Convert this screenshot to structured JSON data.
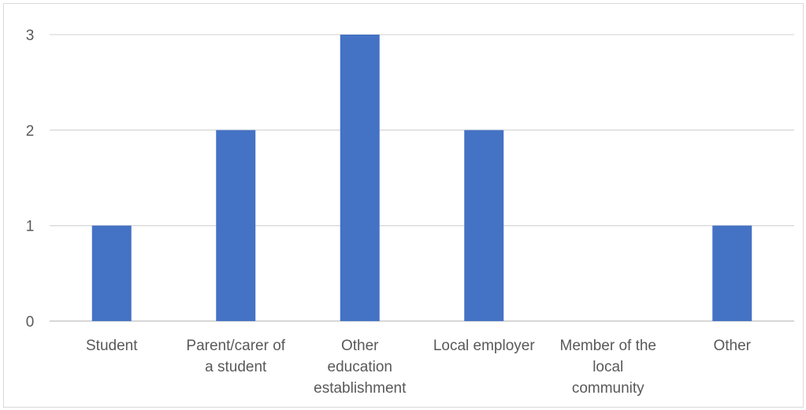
{
  "chart_data": {
    "type": "bar",
    "categories": [
      [
        "Student"
      ],
      [
        "Parent/carer of",
        "a student"
      ],
      [
        "Other",
        "education",
        "establishment"
      ],
      [
        "Local employer"
      ],
      [
        "Member of the",
        "local",
        "community"
      ],
      [
        "Other"
      ]
    ],
    "values": [
      1,
      2,
      3,
      2,
      0,
      1
    ],
    "yticks": [
      "0",
      "1",
      "2",
      "3"
    ],
    "ylim": [
      0,
      3
    ],
    "grid": true,
    "colors": {
      "bar": "#4472c4",
      "grid": "#d9d9d9",
      "axis": "#bfbfbf",
      "text": "#595959"
    }
  }
}
